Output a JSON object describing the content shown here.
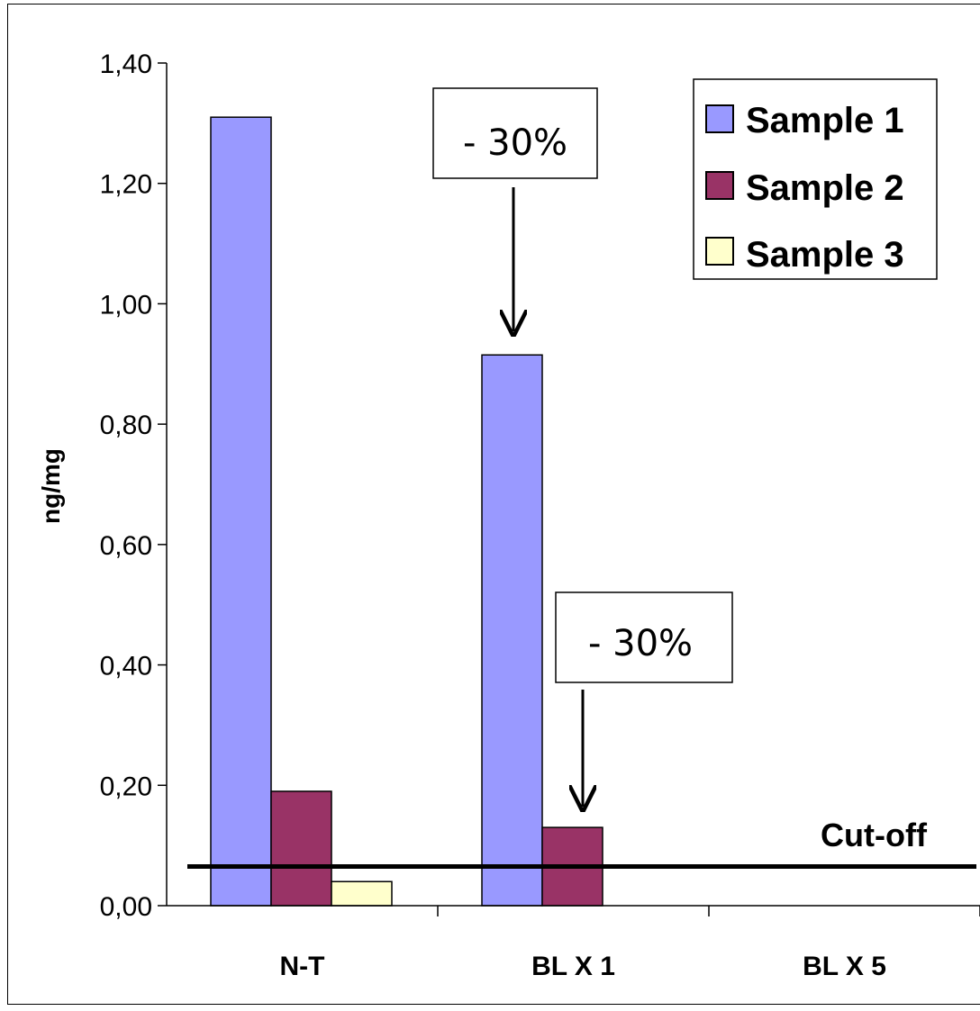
{
  "chart_data": {
    "type": "bar",
    "categories": [
      "N-T",
      "BL X 1",
      "BL X 5"
    ],
    "series": [
      {
        "name": "Sample 1",
        "values": [
          1.31,
          0.915,
          0
        ],
        "color": "#9999ff"
      },
      {
        "name": "Sample 2",
        "values": [
          0.19,
          0.13,
          0
        ],
        "color": "#993366"
      },
      {
        "name": "Sample 3",
        "values": [
          0.04,
          0,
          0
        ],
        "color": "#ffffcc"
      }
    ],
    "ylabel": "ng/mg",
    "ylim": [
      0,
      1.4
    ],
    "yticks": [
      "0,00",
      "0,20",
      "0,40",
      "0,60",
      "0,80",
      "1,00",
      "1,20",
      "1,40"
    ],
    "cutoff": {
      "label": "Cut-off",
      "value": 0.065
    },
    "annotations": [
      {
        "text": "- 30%",
        "category": "BL X 1",
        "series": "Sample 1"
      },
      {
        "text": "- 30%",
        "category": "BL X 1",
        "series": "Sample 2"
      }
    ],
    "legend": "top-right",
    "grid": false
  }
}
